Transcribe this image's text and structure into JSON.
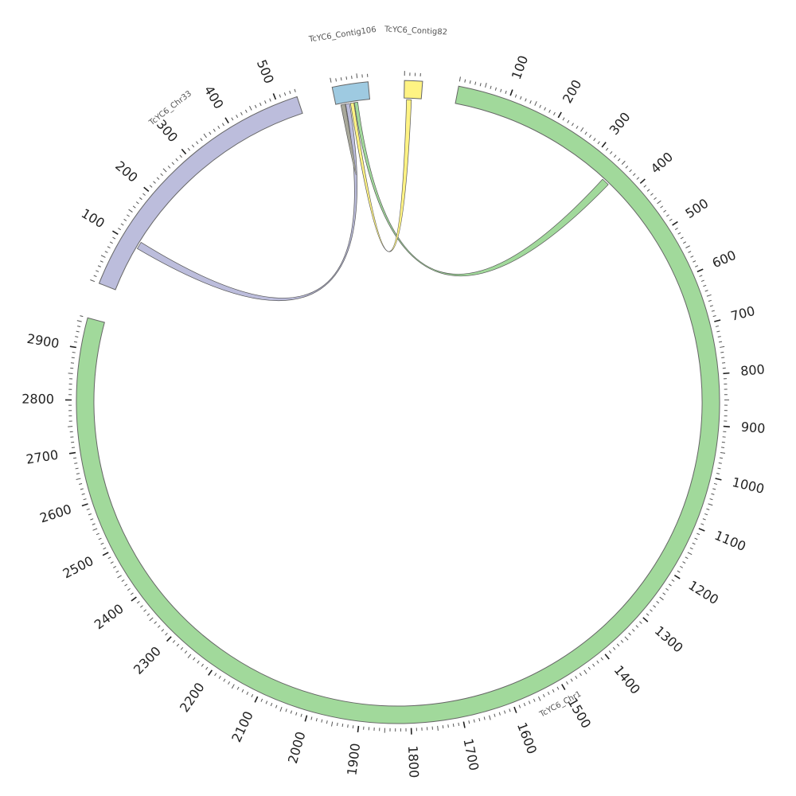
{
  "diagram": {
    "type": "circos",
    "gap_fraction": 0.018,
    "segments": [
      {
        "id": "chr1",
        "name": "TcYC6_Chr1",
        "length": 2960,
        "color": "#a1d99b",
        "ticks": [
          100,
          200,
          300,
          400,
          500,
          600,
          700,
          800,
          900,
          1000,
          1100,
          1200,
          1300,
          1400,
          1500,
          1600,
          1700,
          1800,
          1900,
          2000,
          2100,
          2200,
          2300,
          2400,
          2500,
          2600,
          2700,
          2800,
          2900
        ]
      },
      {
        "id": "chr33",
        "name": "TcYC6_Chr33",
        "length": 540,
        "color": "#bcbddc",
        "ticks": [
          100,
          200,
          300,
          400,
          500
        ]
      },
      {
        "id": "contig106",
        "name": "TcYC6_Contig106",
        "length": 70,
        "color": "#9ecae1",
        "ticks": []
      },
      {
        "id": "contig82",
        "name": "TcYC6_Contig82",
        "length": 35,
        "color": "#fff383",
        "ticks": []
      }
    ],
    "links": [
      {
        "from": "chr33",
        "from_start": 95,
        "from_end": 110,
        "to": "contig106",
        "to_start": 20,
        "to_end": 28,
        "color": "#bcbddc"
      },
      {
        "from": "chr1",
        "from_start": 342,
        "from_end": 358,
        "to": "contig106",
        "to_start": 38,
        "to_end": 45,
        "color": "#a1d99b"
      },
      {
        "from": "contig82",
        "from_start": 5,
        "from_end": 15,
        "to": "contig106",
        "to_start": 30,
        "to_end": 37,
        "color": "#fff383"
      },
      {
        "from": "contig106",
        "from_start": 10,
        "from_end": 19,
        "to": "contig106",
        "to_start": 10,
        "to_end": 19,
        "color": "#a8a89a"
      }
    ]
  }
}
